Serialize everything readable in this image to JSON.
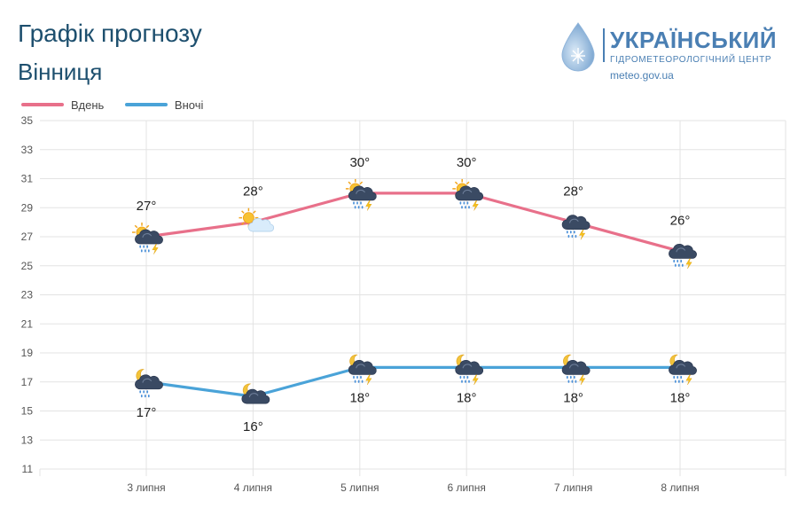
{
  "header": {
    "title": "Графік прогнозу",
    "subtitle": "Вінниця"
  },
  "logo": {
    "name": "УКРАЇНСЬКИЙ",
    "org": "ГІДРОМЕТЕОРОЛОГІЧНИЙ ЦЕНТР",
    "site": "meteo.gov.ua"
  },
  "legend": {
    "day": "Вдень",
    "night": "Вночі"
  },
  "colors": {
    "day": "#e8708a",
    "night": "#4aa3d8",
    "grid": "#e3e3e3",
    "brand": "#4a7fb3"
  },
  "chart_data": {
    "type": "line",
    "categories": [
      "3 липня",
      "4 липня",
      "5 липня",
      "6 липня",
      "7 липня",
      "8 липня"
    ],
    "ylim": [
      11,
      35
    ],
    "yticks": [
      11,
      13,
      15,
      17,
      19,
      21,
      23,
      25,
      27,
      29,
      31,
      33,
      35
    ],
    "grid": true,
    "legend_position": "top-left",
    "series": [
      {
        "name": "Вдень",
        "values": [
          27,
          28,
          30,
          30,
          28,
          26
        ],
        "labels": [
          "27°",
          "28°",
          "30°",
          "30°",
          "28°",
          "26°"
        ],
        "icons": [
          "sun-cloud-rain-thunder-icon",
          "sun-cloud-icon",
          "sun-cloud-rain-thunder-icon",
          "sun-cloud-rain-thunder-icon",
          "cloud-rain-thunder-icon",
          "cloud-rain-thunder-icon"
        ]
      },
      {
        "name": "Вночі",
        "values": [
          17,
          16,
          18,
          18,
          18,
          18
        ],
        "labels": [
          "17°",
          "16°",
          "18°",
          "18°",
          "18°",
          "18°"
        ],
        "icons": [
          "moon-cloud-rain-icon",
          "moon-cloud-icon",
          "moon-cloud-rain-thunder-icon",
          "moon-cloud-rain-thunder-icon",
          "moon-cloud-rain-thunder-icon",
          "moon-cloud-rain-thunder-icon"
        ]
      }
    ]
  }
}
